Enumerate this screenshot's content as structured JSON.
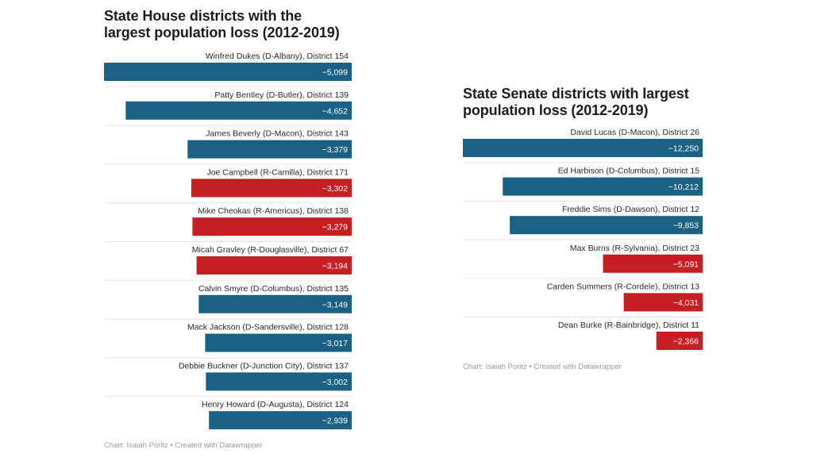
{
  "colors": {
    "democrat": "#1b6184",
    "republican": "#c51f24"
  },
  "chart_data": [
    {
      "type": "bar",
      "orientation": "horizontal",
      "title": "State House districts with the largest population loss (2012-2019)",
      "title_lines": [
        "State House districts with the",
        "largest population loss (2012-2019)"
      ],
      "xlim": [
        -5099,
        0
      ],
      "categories": [
        "Winfred Dukes (D-Albany), District 154",
        "Patty Bentley (D-Butler), District 139",
        "James Beverly (D-Macon), District 143",
        "Joe Campbell (R-Camilla), District 171",
        "Mike Cheokas (R-Americus), District 138",
        "Micah Gravley (R-Douglasville), District 67",
        "Calvin Smyre (D-Columbus), District 135",
        "Mack Jackson (D-Sandersville), District 128",
        "Debbie Buckner (D-Junction City), District 137",
        "Henry Howard (D-Augusta), District 124"
      ],
      "values": [
        -5099,
        -4652,
        -3379,
        -3302,
        -3279,
        -3194,
        -3149,
        -3017,
        -3002,
        -2939
      ],
      "value_labels": [
        "−5,099",
        "−4,652",
        "−3,379",
        "−3,302",
        "−3,279",
        "−3,194",
        "−3,149",
        "−3,017",
        "−3,002",
        "−2,939"
      ],
      "party": [
        "D",
        "D",
        "D",
        "R",
        "R",
        "R",
        "D",
        "D",
        "D",
        "D"
      ],
      "footer": "Chart: Isaiah Poritz • Created with Datawrapper"
    },
    {
      "type": "bar",
      "orientation": "horizontal",
      "title": "State Senate districts with largest population loss (2012-2019)",
      "title_lines": [
        "State Senate districts with largest",
        "population loss (2012-2019)"
      ],
      "xlim": [
        -12250,
        0
      ],
      "categories": [
        "David Lucas (D-Macon), District 26",
        "Ed Harbison (D-Columbus), District 15",
        "Freddie Sims (D-Dawson), District 12",
        "Max Burns (R-Sylvania), District 23",
        "Carden Summers (R-Cordele), District 13",
        "Dean Burke (R-Bainbridge), District 11"
      ],
      "values": [
        -12250,
        -10212,
        -9853,
        -5091,
        -4031,
        -2366
      ],
      "value_labels": [
        "−12,250",
        "−10,212",
        "−9,853",
        "−5,091",
        "−4,031",
        "−2,366"
      ],
      "party": [
        "D",
        "D",
        "D",
        "R",
        "R",
        "R"
      ],
      "footer": "Chart: Isaiah Poritz • Created with Datawrapper"
    }
  ]
}
